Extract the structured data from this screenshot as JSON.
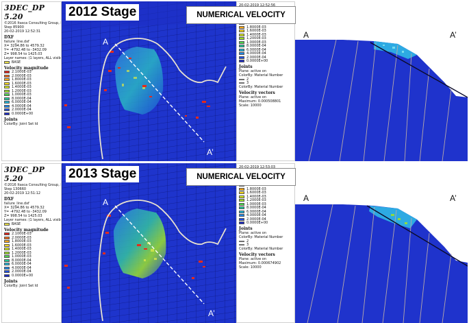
{
  "app_title": "3DEC_DP 5.20",
  "copyright": "©2016 Itasca Consulting Group, Inc.",
  "stages": [
    {
      "title": "2012 Stage",
      "step": "Step 85900",
      "date_left": "20-02-2019 12:52:31",
      "date_legend": "20-02-2019 12:52:56",
      "dxf": {
        "label": "DXF",
        "file": "failure_line.dxf",
        "x": "X= 3294.86 to 4579.32",
        "y": "Y= -4792.48 to -3432.09",
        "z": "Z= 998.54 to 1425.03",
        "layer": "Layer names: (1 layers, ALL visible)",
        "base": "BASE"
      },
      "vector_max": "Maximum: 0.000508801"
    },
    {
      "title": "2013 Stage",
      "step": "Step 130660",
      "date_left": "20-02-2019 12:51:12",
      "date_legend": "20-02-2019 12:53:03",
      "dxf": {
        "label": "DXF",
        "file": "failure_line.dxf",
        "x": "X= 3294.86 to 4579.32",
        "y": "Y= -4792.48 to -3432.09",
        "z": "Z= 998.54 to 1425.03",
        "layer": "Layer names: (1 layers, ALL visible)",
        "base": "BASE"
      },
      "vector_max": "Maximum: 0.000674902"
    }
  ],
  "numerical_velocity": "NUMERICAL VELOCITY",
  "velocity_magnitude": "Velocity magnitude",
  "plane_active": "Plane: active on",
  "legend_values": [
    "2.1000E-03",
    "2.0000E-03",
    "1.8000E-03",
    "1.6000E-03",
    "1.4000E-03",
    "1.2000E-03",
    "1.0000E-03",
    "8.0000E-04",
    "6.0000E-04",
    "4.0000E-04",
    "2.0000E-04",
    "0.0000E+00"
  ],
  "legend_colors": [
    "#e4231b",
    "#f06a1a",
    "#f6a81b",
    "#f7d81c",
    "#d8ea1e",
    "#9ee22a",
    "#4fd54a",
    "#22c79a",
    "#1fb6d9",
    "#1e86e8",
    "#2050e0",
    "#1b2bc9"
  ],
  "joints": {
    "label": "Joints",
    "colorby_setid": "ColorBy: Joint Set Id",
    "colorby_material": "ColorBy: Material Number",
    "entries": [
      "2",
      "3"
    ]
  },
  "velocity_vectors": {
    "label": "Velocity vectors",
    "scale": "Scale: 10000"
  },
  "points": {
    "a": "A",
    "a_prime": "A’"
  }
}
